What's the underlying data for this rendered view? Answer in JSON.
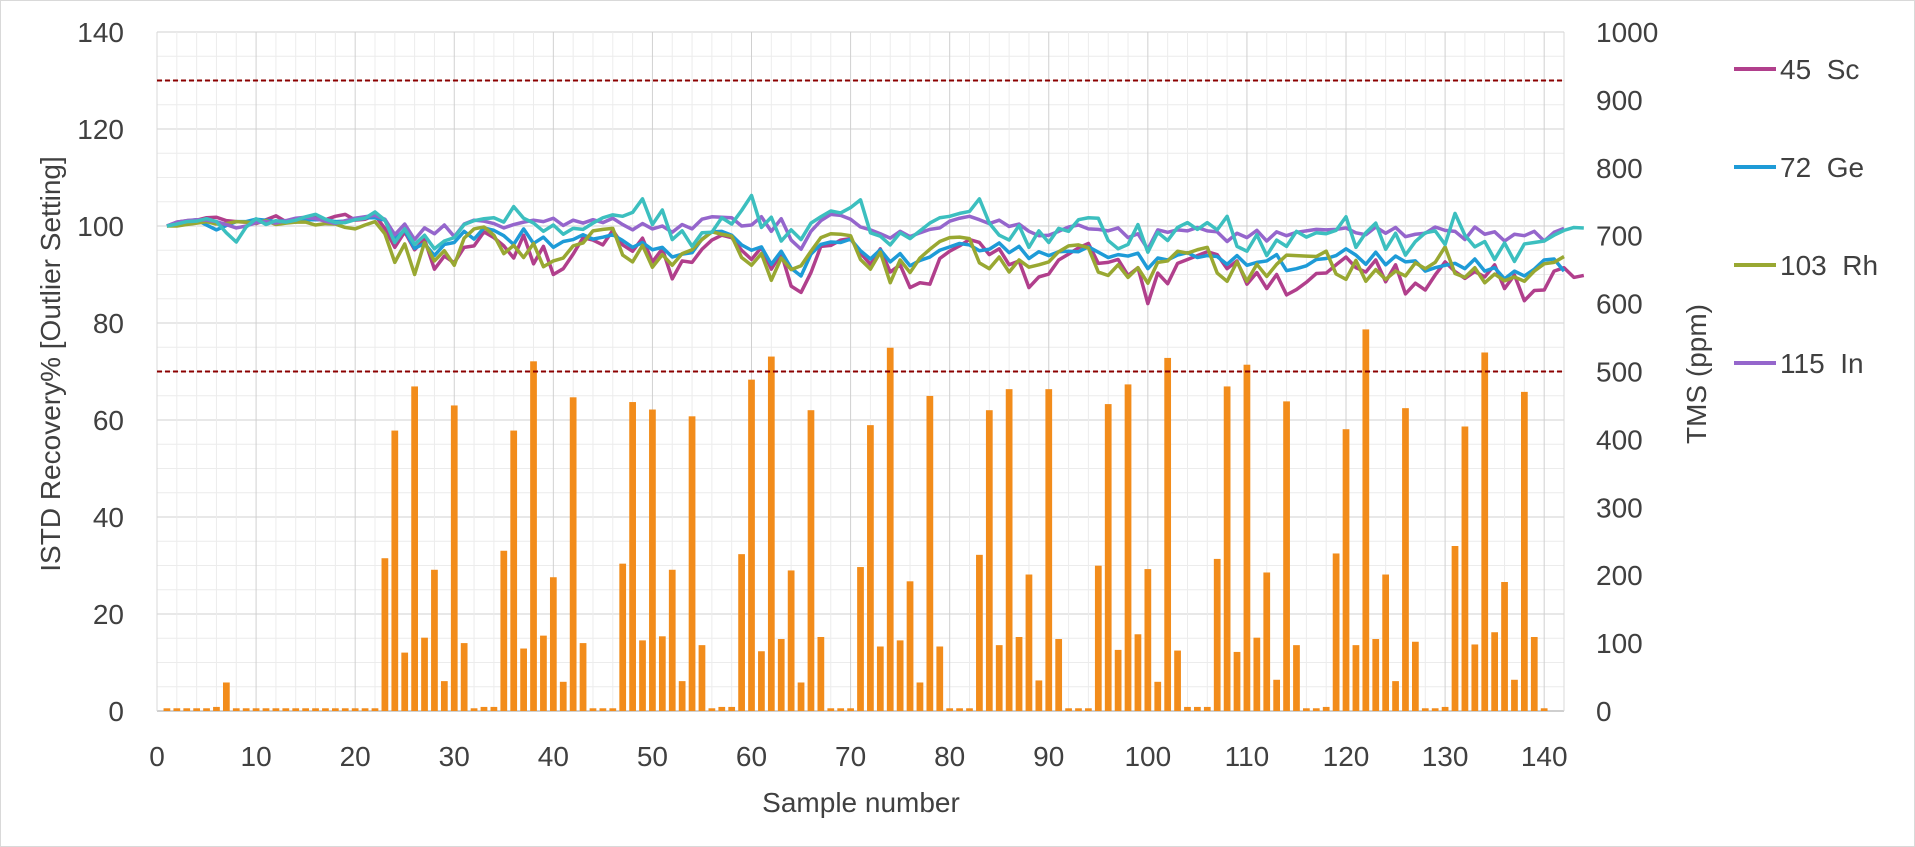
{
  "chart_data": {
    "type": "bar+line",
    "x": {
      "label": "Sample number",
      "range": [
        0,
        142
      ],
      "ticks": [
        0,
        10,
        20,
        30,
        40,
        50,
        60,
        70,
        80,
        90,
        100,
        110,
        120,
        130,
        140
      ]
    },
    "y_left": {
      "label": "ISTD Recovery% [Outlier Setting]",
      "range": [
        0,
        140
      ],
      "ticks": [
        0,
        20,
        40,
        60,
        80,
        100,
        120,
        140
      ]
    },
    "y_right": {
      "label": "TMS (ppm)",
      "range": [
        0,
        1000
      ],
      "ticks": [
        0,
        100,
        200,
        300,
        400,
        500,
        600,
        700,
        800,
        900,
        1000
      ]
    },
    "grid": true,
    "outlier_limits": [
      130,
      70
    ],
    "outlier_color": "#8B0000",
    "bar_series": {
      "axis": "right",
      "color": "#F28C1B",
      "values": [
        4,
        4,
        4,
        4,
        4,
        6,
        42,
        4,
        4,
        4,
        4,
        4,
        4,
        4,
        4,
        4,
        4,
        4,
        4,
        4,
        4,
        4,
        225,
        413,
        86,
        478,
        108,
        208,
        44,
        450,
        100,
        4,
        6,
        6,
        236,
        413,
        92,
        515,
        111,
        197,
        43,
        462,
        100,
        4,
        4,
        4,
        217,
        455,
        104,
        444,
        110,
        208,
        44,
        434,
        97,
        4,
        6,
        6,
        231,
        488,
        88,
        522,
        106,
        207,
        42,
        443,
        109,
        4,
        4,
        4,
        212,
        421,
        95,
        535,
        104,
        191,
        42,
        464,
        95,
        4,
        4,
        4,
        230,
        443,
        97,
        474,
        109,
        201,
        45,
        474,
        106,
        4,
        4,
        4,
        214,
        452,
        90,
        481,
        113,
        209,
        43,
        520,
        89,
        6,
        6,
        6,
        224,
        478,
        87,
        510,
        108,
        204,
        46,
        456,
        97,
        4,
        4,
        6,
        232,
        415,
        97,
        562,
        106,
        201,
        44,
        446,
        102,
        4,
        4,
        6,
        243,
        419,
        98,
        528,
        116,
        190,
        46,
        470,
        109,
        4
      ]
    },
    "line_series": [
      {
        "name": "45  Sc",
        "color": "#B13F8C",
        "values": [
          100,
          100.8,
          101.1,
          101.2,
          101.7,
          101.8,
          101.1,
          100.9,
          100.8,
          100.5,
          101.3,
          102.1,
          100.9,
          101.1,
          101.2,
          101.7,
          101.3,
          102.0,
          102.4,
          101.2,
          101.4,
          102.2,
          99.5,
          95.6,
          98.8,
          95.1,
          97.2,
          91.1,
          93.8,
          92.4,
          95.6,
          95.9,
          98.8,
          97.6,
          95.9,
          93.4,
          98.1,
          92.2,
          95.8,
          90.0,
          91.2,
          94.2,
          97.6,
          97.1,
          96.1,
          99.1,
          96.1,
          94.8,
          97.5,
          92.6,
          95.3,
          89.1,
          92.8,
          92.5,
          95.2,
          97.1,
          98.1,
          97.6,
          95.0,
          93.1,
          95.6,
          91.1,
          94.4,
          87.6,
          86.3,
          90.4,
          95.8,
          96.0,
          97.1,
          97.4,
          94.4,
          92.1,
          95.3,
          90.5,
          92.0,
          87.3,
          88.3,
          88.0,
          93.3,
          94.8,
          95.9,
          97.2,
          96.6,
          94.1,
          95.3,
          92.0,
          92.8,
          87.3,
          89.5,
          90.1,
          93.0,
          94.2,
          95.5,
          96.4,
          92.3,
          92.5,
          93.1,
          89.8,
          91.4,
          84.0,
          90.3,
          88.1,
          92.3,
          93.1,
          93.9,
          94.7,
          94.1,
          91.2,
          92.8,
          88.0,
          90.4,
          87.1,
          90.0,
          85.8,
          86.9,
          88.4,
          90.2,
          90.3,
          92.0,
          93.6,
          91.4,
          90.5,
          93.0,
          88.5,
          92.0,
          86.0,
          88.2,
          86.8,
          89.9,
          92.6,
          90.6,
          89.2,
          90.6,
          89.5,
          92.0,
          87.1,
          89.9,
          84.6,
          86.7,
          86.8,
          90.7,
          91.4,
          89.4,
          89.8
        ]
      },
      {
        "name": "72  Ge",
        "color": "#1E9BD7",
        "values": [
          100,
          100.5,
          101.0,
          101.3,
          100.2,
          99.2,
          100.1,
          100.9,
          100.9,
          101.4,
          101.2,
          100.9,
          101.1,
          100.8,
          101.3,
          101.3,
          101.3,
          100.9,
          101.0,
          101.6,
          101.7,
          101.7,
          101.2,
          97.3,
          99.2,
          95.4,
          96.4,
          93.9,
          96.2,
          96.6,
          98.9,
          97.3,
          99.6,
          99.1,
          98.0,
          96.2,
          99.4,
          96.4,
          97.7,
          95.6,
          96.8,
          97.2,
          98.2,
          97.3,
          97.7,
          98.2,
          97.0,
          95.6,
          96.6,
          95.1,
          95.6,
          93.6,
          94.2,
          94.5,
          97.3,
          98.8,
          98.9,
          98.1,
          96.1,
          95.0,
          95.7,
          92.1,
          94.8,
          91.3,
          89.7,
          94.2,
          96.2,
          96.7,
          96.6,
          97.3,
          94.9,
          93.2,
          95.1,
          92.6,
          94.3,
          91.8,
          92.9,
          93.6,
          95.0,
          95.7,
          96.4,
          96.1,
          94.9,
          95.2,
          96.5,
          94.5,
          95.8,
          93.3,
          94.7,
          93.9,
          94.7,
          94.8,
          94.7,
          95.7,
          94.6,
          93.5,
          94.1,
          93.8,
          94.4,
          91.2,
          93.4,
          93.0,
          94.0,
          94.5,
          93.5,
          93.9,
          93.7,
          92.1,
          93.9,
          91.9,
          92.5,
          92.8,
          94.1,
          90.8,
          91.2,
          91.8,
          93.1,
          93.3,
          93.9,
          95.3,
          94.0,
          92.1,
          94.6,
          92.0,
          93.8,
          92.6,
          92.8,
          90.7,
          91.4,
          91.9,
          92.3,
          91.2,
          93.2,
          90.7,
          91.4,
          89.1,
          90.7,
          89.7,
          91.1,
          93.0,
          93.2,
          90.7
        ]
      },
      {
        "name": "103  Rh",
        "color": "#99A832",
        "values": [
          100,
          100.0,
          100.3,
          100.6,
          100.9,
          100.4,
          100.5,
          100.9,
          100.8,
          100.6,
          101.1,
          100.3,
          100.6,
          100.8,
          100.8,
          100.2,
          100.5,
          100.4,
          99.7,
          99.4,
          100.2,
          100.9,
          98.4,
          92.5,
          96.3,
          90.0,
          96.6,
          92.8,
          94.9,
          91.9,
          97.5,
          99.4,
          99.8,
          98.1,
          94.3,
          96.0,
          93.5,
          96.4,
          91.6,
          92.8,
          93.4,
          95.9,
          96.5,
          99.0,
          99.3,
          99.5,
          94.0,
          92.6,
          96.0,
          91.5,
          94.1,
          91.9,
          94.3,
          95.1,
          97.2,
          98.8,
          98.3,
          97.9,
          93.5,
          91.9,
          94.3,
          88.8,
          93.4,
          91.0,
          91.8,
          94.8,
          97.6,
          98.4,
          98.3,
          98.0,
          93.1,
          91.1,
          94.6,
          88.3,
          93.0,
          90.4,
          93.4,
          95.2,
          96.8,
          97.6,
          97.7,
          97.4,
          92.4,
          91.2,
          93.6,
          90.5,
          93.0,
          91.5,
          92.0,
          92.6,
          94.7,
          95.9,
          96.1,
          95.5,
          90.5,
          89.8,
          92.0,
          89.4,
          91.4,
          88.2,
          92.5,
          92.8,
          94.8,
          94.4,
          95.1,
          95.6,
          90.3,
          88.6,
          92.6,
          88.6,
          92.1,
          89.6,
          92.1,
          94.0,
          93.9,
          93.8,
          93.7,
          94.8,
          90.1,
          89.0,
          92.9,
          88.6,
          91.0,
          89.0,
          90.7,
          89.7,
          92.4,
          91.2,
          92.5,
          95.7,
          90.2,
          89.4,
          91.4,
          88.3,
          90.1,
          88.7,
          89.5,
          88.6,
          90.7,
          92.2,
          92.5,
          93.7
        ]
      },
      {
        "name": "115  In",
        "color": "#9566CC",
        "values": [
          100,
          100.8,
          101.1,
          101.3,
          101.2,
          100.9,
          100.3,
          99.6,
          100.0,
          100.7,
          100.9,
          100.6,
          101.1,
          101.6,
          101.8,
          101.5,
          101.0,
          100.5,
          101.1,
          101.6,
          101.9,
          102.2,
          101.4,
          98.2,
          100.4,
          97.2,
          99.6,
          98.4,
          100.2,
          97.8,
          100.4,
          101.2,
          101.0,
          100.5,
          99.6,
          100.3,
          100.8,
          101.2,
          100.9,
          101.6,
          100.1,
          101.2,
          100.6,
          101.3,
          100.7,
          101.6,
          100.3,
          99.2,
          100.5,
          99.4,
          100.0,
          98.7,
          100.3,
          99.4,
          101.4,
          101.9,
          101.8,
          101.7,
          100.0,
          100.2,
          101.9,
          98.9,
          101.5,
          97.1,
          95.2,
          98.9,
          101.1,
          102.4,
          102.2,
          101.4,
          99.8,
          99.2,
          98.4,
          97.5,
          98.9,
          97.8,
          98.6,
          99.3,
          99.6,
          101.0,
          101.6,
          102.0,
          101.3,
          100.5,
          101.2,
          99.9,
          100.4,
          98.9,
          98.0,
          98.1,
          98.9,
          99.8,
          100.2,
          99.4,
          99.3,
          99.0,
          99.6,
          97.6,
          98.4,
          95.2,
          99.2,
          98.7,
          99.2,
          99.0,
          99.7,
          99.0,
          98.8,
          96.8,
          98.5,
          97.6,
          99.1,
          96.9,
          98.8,
          98.0,
          98.7,
          99.0,
          99.3,
          99.2,
          99.3,
          99.6,
          98.6,
          98.2,
          99.8,
          98.5,
          99.7,
          97.8,
          98.3,
          98.5,
          99.8,
          99.1,
          98.9,
          97.2,
          99.8,
          98.3,
          98.8,
          96.9,
          98.3,
          98.0,
          98.9,
          96.9,
          98.7,
          99.5
        ]
      },
      {
        "name": "",
        "color": "#3CBFBF",
        "values": [
          100,
          100.4,
          100.9,
          101.0,
          101.5,
          100.9,
          98.6,
          96.7,
          99.8,
          101.5,
          100.3,
          101.1,
          100.8,
          101.2,
          101.9,
          102.4,
          101.4,
          100.7,
          100.7,
          101.3,
          101.6,
          102.9,
          101.2,
          96.6,
          99.4,
          96.2,
          98.1,
          95.3,
          96.9,
          97.6,
          100.3,
          101.1,
          101.5,
          101.7,
          100.8,
          104.0,
          101.6,
          100.6,
          98.9,
          100.2,
          98.3,
          99.5,
          99.3,
          100.6,
          101.7,
          102.3,
          102.0,
          102.8,
          105.6,
          100.3,
          103.3,
          97.2,
          99.0,
          95.8,
          98.6,
          98.7,
          101.7,
          100.4,
          103.2,
          106.3,
          99.7,
          101.8,
          96.9,
          99.2,
          97.2,
          100.6,
          101.9,
          103.1,
          102.7,
          103.8,
          105.4,
          98.6,
          97.9,
          96.1,
          98.6,
          97.4,
          99.0,
          100.6,
          101.7,
          102.0,
          102.6,
          103.0,
          105.6,
          100.6,
          98.1,
          97.1,
          100.1,
          95.6,
          99.0,
          96.6,
          99.5,
          98.9,
          101.3,
          101.7,
          101.6,
          97.0,
          95.3,
          96.2,
          100.3,
          94.6,
          98.7,
          97.0,
          99.7,
          100.7,
          99.3,
          100.7,
          99.2,
          102.0,
          95.8,
          94.8,
          98.2,
          93.9,
          97.1,
          95.8,
          98.9,
          97.7,
          98.6,
          98.4,
          99.1,
          101.9,
          95.6,
          98.6,
          100.6,
          95.2,
          98.5,
          94.0,
          96.8,
          98.6,
          99.0,
          96.2,
          102.6,
          98.1,
          95.7,
          96.8,
          93.1,
          96.5,
          92.7,
          96.3,
          96.6,
          96.9,
          98.1,
          99.1,
          99.7,
          99.6
        ]
      }
    ],
    "legend": {
      "position": "right",
      "entries": [
        "45  Sc",
        "72  Ge",
        "103  Rh",
        "115  In"
      ]
    }
  }
}
